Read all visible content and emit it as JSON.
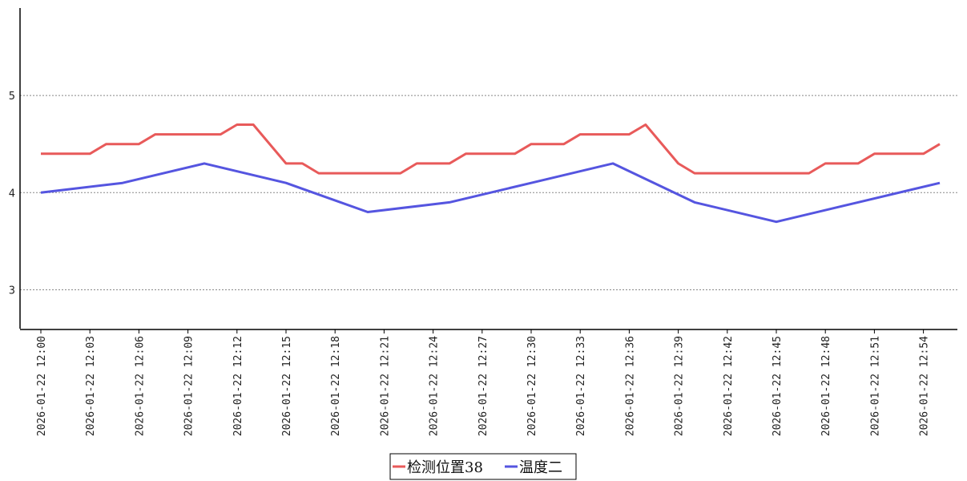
{
  "chart_data": {
    "type": "line",
    "title": "",
    "xlabel": "",
    "ylabel": "",
    "ylim": [
      2.6,
      5.9
    ],
    "yticks": [
      3,
      4,
      5
    ],
    "grid": "horizontal-dotted",
    "legend_position": "bottom-center",
    "x_start": "2026-01-22 12:00",
    "x": [
      "2026-01-22 12:00",
      "2026-01-22 12:01",
      "2026-01-22 12:02",
      "2026-01-22 12:03",
      "2026-01-22 12:04",
      "2026-01-22 12:05",
      "2026-01-22 12:06",
      "2026-01-22 12:07",
      "2026-01-22 12:08",
      "2026-01-22 12:09",
      "2026-01-22 12:10",
      "2026-01-22 12:11",
      "2026-01-22 12:12",
      "2026-01-22 12:13",
      "2026-01-22 12:14",
      "2026-01-22 12:15",
      "2026-01-22 12:16",
      "2026-01-22 12:17",
      "2026-01-22 12:18",
      "2026-01-22 12:19",
      "2026-01-22 12:20",
      "2026-01-22 12:21",
      "2026-01-22 12:22",
      "2026-01-22 12:23",
      "2026-01-22 12:24",
      "2026-01-22 12:25",
      "2026-01-22 12:26",
      "2026-01-22 12:27",
      "2026-01-22 12:28",
      "2026-01-22 12:29",
      "2026-01-22 12:30",
      "2026-01-22 12:31",
      "2026-01-22 12:32",
      "2026-01-22 12:33",
      "2026-01-22 12:34",
      "2026-01-22 12:35",
      "2026-01-22 12:36",
      "2026-01-22 12:37",
      "2026-01-22 12:38",
      "2026-01-22 12:39",
      "2026-01-22 12:40",
      "2026-01-22 12:41",
      "2026-01-22 12:42",
      "2026-01-22 12:43",
      "2026-01-22 12:44",
      "2026-01-22 12:45",
      "2026-01-22 12:46",
      "2026-01-22 12:47",
      "2026-01-22 12:48",
      "2026-01-22 12:49",
      "2026-01-22 12:50",
      "2026-01-22 12:51",
      "2026-01-22 12:52",
      "2026-01-22 12:53",
      "2026-01-22 12:54",
      "2026-01-22 12:55",
      "2026-01-22 12:56"
    ],
    "xtick_labels": [
      "2026-01-22 12:00",
      "2026-01-22 12:03",
      "2026-01-22 12:06",
      "2026-01-22 12:09",
      "2026-01-22 12:12",
      "2026-01-22 12:15",
      "2026-01-22 12:18",
      "2026-01-22 12:21",
      "2026-01-22 12:24",
      "2026-01-22 12:27",
      "2026-01-22 12:30",
      "2026-01-22 12:33",
      "2026-01-22 12:36",
      "2026-01-22 12:39",
      "2026-01-22 12:42",
      "2026-01-22 12:45",
      "2026-01-22 12:48",
      "2026-01-22 12:51",
      "2026-01-22 12:54"
    ],
    "series": [
      {
        "name": "检测位置38",
        "color": "#e85a5a",
        "points": [
          [
            "2026-01-22 12:00",
            4.4
          ],
          [
            "2026-01-22 12:03",
            4.4
          ],
          [
            "2026-01-22 12:04",
            4.5
          ],
          [
            "2026-01-22 12:06",
            4.5
          ],
          [
            "2026-01-22 12:07",
            4.6
          ],
          [
            "2026-01-22 12:11",
            4.6
          ],
          [
            "2026-01-22 12:12",
            4.7
          ],
          [
            "2026-01-22 12:13",
            4.7
          ],
          [
            "2026-01-22 12:15",
            4.3
          ],
          [
            "2026-01-22 12:16",
            4.3
          ],
          [
            "2026-01-22 12:17",
            4.2
          ],
          [
            "2026-01-22 12:22",
            4.2
          ],
          [
            "2026-01-22 12:23",
            4.3
          ],
          [
            "2026-01-22 12:25",
            4.3
          ],
          [
            "2026-01-22 12:26",
            4.4
          ],
          [
            "2026-01-22 12:29",
            4.4
          ],
          [
            "2026-01-22 12:30",
            4.5
          ],
          [
            "2026-01-22 12:32",
            4.5
          ],
          [
            "2026-01-22 12:33",
            4.6
          ],
          [
            "2026-01-22 12:36",
            4.6
          ],
          [
            "2026-01-22 12:37",
            4.7
          ],
          [
            "2026-01-22 12:39",
            4.3
          ],
          [
            "2026-01-22 12:40",
            4.2
          ],
          [
            "2026-01-22 12:47",
            4.2
          ],
          [
            "2026-01-22 12:48",
            4.3
          ],
          [
            "2026-01-22 12:50",
            4.3
          ],
          [
            "2026-01-22 12:51",
            4.4
          ],
          [
            "2026-01-22 12:54",
            4.4
          ],
          [
            "2026-01-22 12:55",
            4.5
          ]
        ]
      },
      {
        "name": "温度二",
        "color": "#5555e0",
        "points": [
          [
            "2026-01-22 12:00",
            4.0
          ],
          [
            "2026-01-22 12:05",
            4.1
          ],
          [
            "2026-01-22 12:10",
            4.3
          ],
          [
            "2026-01-22 12:15",
            4.1
          ],
          [
            "2026-01-22 12:20",
            3.8
          ],
          [
            "2026-01-22 12:25",
            3.9
          ],
          [
            "2026-01-22 12:30",
            4.1
          ],
          [
            "2026-01-22 12:35",
            4.3
          ],
          [
            "2026-01-22 12:40",
            3.9
          ],
          [
            "2026-01-22 12:45",
            3.7
          ],
          [
            "2026-01-22 12:50",
            3.9
          ],
          [
            "2026-01-22 12:55",
            4.1
          ]
        ]
      }
    ]
  }
}
